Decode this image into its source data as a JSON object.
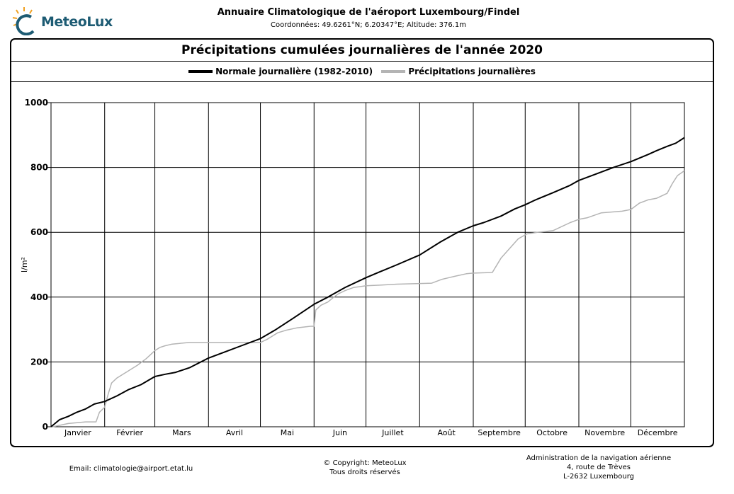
{
  "header": {
    "logo_text": "MeteoLux",
    "title": "Annuaire Climatologique de l'aéroport Luxembourg/Findel",
    "coordinates": "Coordonnées: 49.6261°N; 6.20347°E; Altitude: 376.1m"
  },
  "footer": {
    "email": "Email: climatologie@airport.etat.lu",
    "copyright": "© Copyright: MeteoLux",
    "rights": "Tous droits réservés",
    "admin_line1": "Administration de la navigation aérienne",
    "admin_line2": "4, route de Trèves",
    "admin_line3": "L-2632 Luxembourg"
  },
  "colors": {
    "normal": "#000000",
    "actual": "#b4b4b4",
    "logo": "#1d5b73",
    "sun": "#f0a020"
  },
  "chart_data": {
    "type": "line",
    "title": "Précipitations cumulées journalières de l'année 2020",
    "xlabel": "",
    "ylabel": "l/m²",
    "ylim": [
      0,
      1000
    ],
    "yticks": [
      0,
      200,
      400,
      600,
      800,
      1000
    ],
    "xlim": [
      0,
      366
    ],
    "grid": true,
    "legend_position": "top-center",
    "months": [
      "Janvier",
      "Février",
      "Mars",
      "Avril",
      "Mai",
      "Juin",
      "Juillet",
      "Août",
      "Septembre",
      "Octobre",
      "Novembre",
      "Décembre"
    ],
    "month_start_days": [
      0,
      31,
      60,
      91,
      121,
      152,
      182,
      213,
      244,
      274,
      305,
      335,
      366
    ],
    "series": [
      {
        "name": "Normale journalière (1982-2010)",
        "x": [
          0,
          5,
          10,
          15,
          20,
          25,
          31,
          38,
          45,
          52,
          60,
          66,
          72,
          80,
          91,
          100,
          110,
          121,
          130,
          140,
          152,
          160,
          170,
          182,
          190,
          200,
          213,
          225,
          235,
          244,
          250,
          260,
          268,
          274,
          280,
          290,
          300,
          305,
          315,
          325,
          335,
          345,
          350,
          356,
          361,
          366
        ],
        "y": [
          0,
          22,
          32,
          45,
          55,
          70,
          78,
          95,
          115,
          130,
          155,
          162,
          168,
          182,
          212,
          230,
          250,
          272,
          300,
          335,
          378,
          400,
          430,
          460,
          478,
          500,
          530,
          570,
          600,
          620,
          630,
          650,
          672,
          685,
          700,
          722,
          745,
          760,
          780,
          800,
          818,
          840,
          852,
          865,
          875,
          892
        ]
      },
      {
        "name": "Précipitations journalières",
        "x": [
          0,
          1,
          10,
          20,
          26,
          28,
          31,
          33,
          35,
          38,
          44,
          50,
          55,
          60,
          63,
          66,
          70,
          80,
          91,
          100,
          110,
          121,
          125,
          131,
          136,
          142,
          150,
          152,
          153,
          156,
          160,
          163,
          166,
          170,
          175,
          182,
          190,
          200,
          213,
          220,
          226,
          230,
          234,
          240,
          244,
          255,
          260,
          270,
          275,
          281,
          290,
          300,
          305,
          310,
          318,
          330,
          335,
          340,
          345,
          350,
          356,
          359,
          362,
          366
        ],
        "y": [
          0,
          0,
          10,
          15,
          15,
          45,
          60,
          100,
          135,
          150,
          170,
          190,
          210,
          235,
          245,
          250,
          255,
          260,
          260,
          260,
          260,
          260,
          270,
          290,
          298,
          305,
          310,
          310,
          360,
          375,
          385,
          398,
          410,
          420,
          430,
          435,
          437,
          440,
          442,
          443,
          455,
          460,
          465,
          472,
          474,
          476,
          520,
          580,
          595,
          600,
          605,
          630,
          640,
          645,
          660,
          665,
          670,
          690,
          700,
          705,
          720,
          750,
          775,
          790
        ]
      }
    ]
  }
}
